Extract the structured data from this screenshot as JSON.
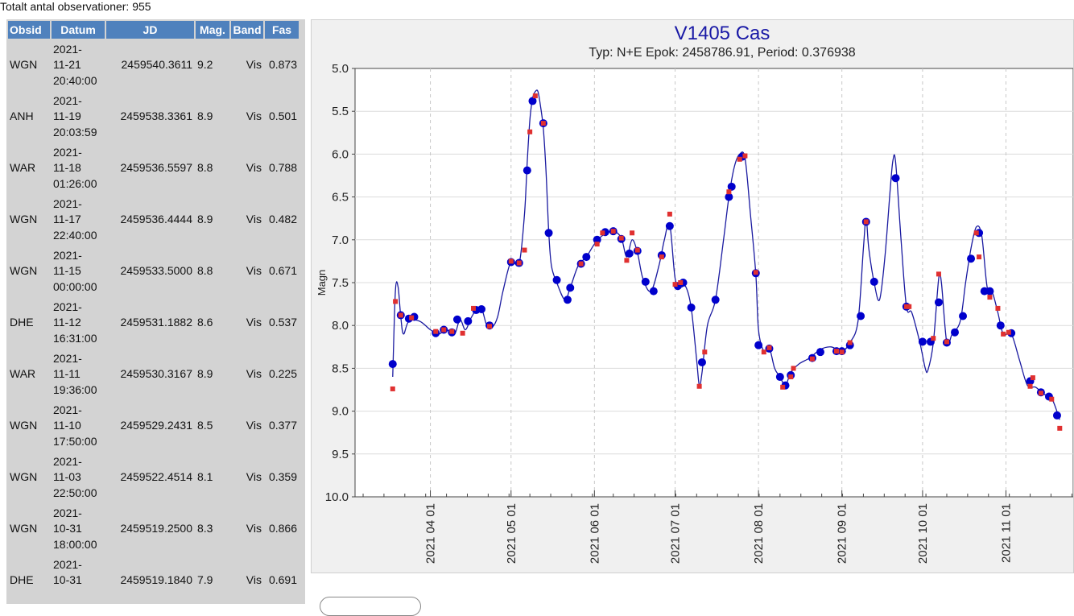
{
  "header": {
    "total_label": "Totalt antal observationer: 955"
  },
  "table": {
    "columns": [
      "Obsid",
      "Datum",
      "JD",
      "Mag.",
      "Band",
      "Fas"
    ],
    "rows": [
      {
        "obsid": "WGN",
        "datum": [
          "2021-",
          "11-21",
          "20:40:00"
        ],
        "jd": "2459540.3611",
        "mag": "9.2",
        "band": "Vis",
        "fas": "0.873"
      },
      {
        "obsid": "ANH",
        "datum": [
          "2021-",
          "11-19",
          "20:03:59"
        ],
        "jd": "2459538.3361",
        "mag": "8.9",
        "band": "Vis",
        "fas": "0.501"
      },
      {
        "obsid": "WAR",
        "datum": [
          "2021-",
          "11-18",
          "01:26:00"
        ],
        "jd": "2459536.5597",
        "mag": "8.8",
        "band": "Vis",
        "fas": "0.788"
      },
      {
        "obsid": "WGN",
        "datum": [
          "2021-",
          "11-17",
          "22:40:00"
        ],
        "jd": "2459536.4444",
        "mag": "8.9",
        "band": "Vis",
        "fas": "0.482"
      },
      {
        "obsid": "WGN",
        "datum": [
          "2021-",
          "11-15",
          "00:00:00"
        ],
        "jd": "2459533.5000",
        "mag": "8.8",
        "band": "Vis",
        "fas": "0.671"
      },
      {
        "obsid": "DHE",
        "datum": [
          "2021-",
          "11-12",
          "16:31:00"
        ],
        "jd": "2459531.1882",
        "mag": "8.6",
        "band": "Vis",
        "fas": "0.537"
      },
      {
        "obsid": "WAR",
        "datum": [
          "2021-",
          "11-11",
          "19:36:00"
        ],
        "jd": "2459530.3167",
        "mag": "8.9",
        "band": "Vis",
        "fas": "0.225"
      },
      {
        "obsid": "WGN",
        "datum": [
          "2021-",
          "11-10",
          "17:50:00"
        ],
        "jd": "2459529.2431",
        "mag": "8.5",
        "band": "Vis",
        "fas": "0.377"
      },
      {
        "obsid": "WGN",
        "datum": [
          "2021-",
          "11-03",
          "22:50:00"
        ],
        "jd": "2459522.4514",
        "mag": "8.1",
        "band": "Vis",
        "fas": "0.359"
      },
      {
        "obsid": "WGN",
        "datum": [
          "2021-",
          "10-31",
          "18:00:00"
        ],
        "jd": "2459519.2500",
        "mag": "8.3",
        "band": "Vis",
        "fas": "0.866"
      },
      {
        "obsid": "DHE",
        "datum": [
          "2021-",
          "10-31",
          ""
        ],
        "jd": "2459519.1840",
        "mag": "7.9",
        "band": "Vis",
        "fas": "0.691"
      }
    ]
  },
  "chart_data": {
    "type": "scatter",
    "title": "V1405 Cas",
    "subtitle": "Typ: N+E Epok: 2458786.91, Period: 0.376938",
    "ylabel": "Magn",
    "xlabel": "",
    "ylim": [
      10.0,
      5.0
    ],
    "y_inverted": true,
    "yticks": [
      "5.0",
      "5.5",
      "6.0",
      "6.5",
      "7.0",
      "7.5",
      "8.0",
      "8.5",
      "9.0",
      "9.5",
      "10.0"
    ],
    "xlim": [
      "2021-03-04",
      "2021-11-26"
    ],
    "xticks": [
      "2021 04 01",
      "2021 05 01",
      "2021 06 01",
      "2021 07 01",
      "2021 08 01",
      "2021 09 01",
      "2021 10 01",
      "2021 11 01"
    ],
    "grid": true,
    "colors": {
      "blue_points": "#0000cc",
      "red_points": "#e03030",
      "line": "#1a1aa0",
      "title": "#1a1aa6"
    },
    "blue_points": [
      [
        "2021-03-18",
        8.45
      ],
      [
        "2021-03-21",
        7.88
      ],
      [
        "2021-03-24",
        7.92
      ],
      [
        "2021-03-26",
        7.9
      ],
      [
        "2021-04-03",
        8.09
      ],
      [
        "2021-04-06",
        8.05
      ],
      [
        "2021-04-09",
        8.08
      ],
      [
        "2021-04-11",
        7.93
      ],
      [
        "2021-04-15",
        7.95
      ],
      [
        "2021-04-18",
        7.82
      ],
      [
        "2021-04-20",
        7.81
      ],
      [
        "2021-04-23",
        8.0
      ],
      [
        "2021-05-01",
        7.26
      ],
      [
        "2021-05-04",
        7.27
      ],
      [
        "2021-05-07",
        6.19
      ],
      [
        "2021-05-09",
        5.38
      ],
      [
        "2021-05-13",
        5.64
      ],
      [
        "2021-05-15",
        6.92
      ],
      [
        "2021-05-18",
        7.47
      ],
      [
        "2021-05-22",
        7.7
      ],
      [
        "2021-05-23",
        7.56
      ],
      [
        "2021-05-27",
        7.28
      ],
      [
        "2021-05-29",
        7.2
      ],
      [
        "2021-06-02",
        7.0
      ],
      [
        "2021-06-05",
        6.91
      ],
      [
        "2021-06-08",
        6.9
      ],
      [
        "2021-06-11",
        6.99
      ],
      [
        "2021-06-14",
        7.16
      ],
      [
        "2021-06-17",
        7.13
      ],
      [
        "2021-06-20",
        7.49
      ],
      [
        "2021-06-23",
        7.6
      ],
      [
        "2021-06-26",
        7.18
      ],
      [
        "2021-06-29",
        6.84
      ],
      [
        "2021-07-02",
        7.54
      ],
      [
        "2021-07-04",
        7.5
      ],
      [
        "2021-07-07",
        7.79
      ],
      [
        "2021-07-11",
        8.43
      ],
      [
        "2021-07-16",
        7.7
      ],
      [
        "2021-07-21",
        6.5
      ],
      [
        "2021-07-22",
        6.38
      ],
      [
        "2021-07-26",
        6.03
      ],
      [
        "2021-07-31",
        7.39
      ],
      [
        "2021-08-01",
        8.23
      ],
      [
        "2021-08-05",
        8.27
      ],
      [
        "2021-08-09",
        8.6
      ],
      [
        "2021-08-11",
        8.7
      ],
      [
        "2021-08-13",
        8.58
      ],
      [
        "2021-08-21",
        8.38
      ],
      [
        "2021-08-24",
        8.31
      ],
      [
        "2021-08-30",
        8.3
      ],
      [
        "2021-09-01",
        8.3
      ],
      [
        "2021-09-04",
        8.23
      ],
      [
        "2021-09-08",
        7.89
      ],
      [
        "2021-09-10",
        6.79
      ],
      [
        "2021-09-13",
        7.49
      ],
      [
        "2021-09-21",
        6.28
      ],
      [
        "2021-09-25",
        7.78
      ],
      [
        "2021-10-01",
        8.19
      ],
      [
        "2021-10-04",
        8.19
      ],
      [
        "2021-10-07",
        7.73
      ],
      [
        "2021-10-10",
        8.2
      ],
      [
        "2021-10-13",
        8.08
      ],
      [
        "2021-10-16",
        7.89
      ],
      [
        "2021-10-19",
        7.22
      ],
      [
        "2021-10-22",
        6.92
      ],
      [
        "2021-10-24",
        7.6
      ],
      [
        "2021-10-26",
        7.6
      ],
      [
        "2021-10-30",
        8.0
      ],
      [
        "2021-11-03",
        8.09
      ],
      [
        "2021-11-10",
        8.65
      ],
      [
        "2021-11-14",
        8.78
      ],
      [
        "2021-11-17",
        8.83
      ],
      [
        "2021-11-20",
        9.05
      ]
    ],
    "red_points": [
      [
        "2021-03-18",
        8.74
      ],
      [
        "2021-03-19",
        7.72
      ],
      [
        "2021-03-21",
        7.88
      ],
      [
        "2021-03-25",
        7.91
      ],
      [
        "2021-04-03",
        8.07
      ],
      [
        "2021-04-06",
        8.05
      ],
      [
        "2021-04-09",
        8.07
      ],
      [
        "2021-04-13",
        8.09
      ],
      [
        "2021-04-17",
        7.8
      ],
      [
        "2021-04-23",
        8.01
      ],
      [
        "2021-05-01",
        7.25
      ],
      [
        "2021-05-04",
        7.27
      ],
      [
        "2021-05-06",
        7.12
      ],
      [
        "2021-05-08",
        5.74
      ],
      [
        "2021-05-10",
        5.32
      ],
      [
        "2021-05-13",
        5.64
      ],
      [
        "2021-05-27",
        7.28
      ],
      [
        "2021-06-02",
        7.05
      ],
      [
        "2021-06-04",
        6.92
      ],
      [
        "2021-06-08",
        6.9
      ],
      [
        "2021-06-11",
        6.98
      ],
      [
        "2021-06-13",
        7.24
      ],
      [
        "2021-06-15",
        6.92
      ],
      [
        "2021-06-17",
        7.12
      ],
      [
        "2021-06-26",
        7.2
      ],
      [
        "2021-06-29",
        6.7
      ],
      [
        "2021-07-01",
        7.52
      ],
      [
        "2021-07-03",
        7.5
      ],
      [
        "2021-07-10",
        8.71
      ],
      [
        "2021-07-12",
        8.31
      ],
      [
        "2021-07-21",
        6.44
      ],
      [
        "2021-07-25",
        6.06
      ],
      [
        "2021-07-27",
        6.02
      ],
      [
        "2021-07-31",
        7.38
      ],
      [
        "2021-08-03",
        8.31
      ],
      [
        "2021-08-05",
        8.26
      ],
      [
        "2021-08-10",
        8.72
      ],
      [
        "2021-08-13",
        8.6
      ],
      [
        "2021-08-14",
        8.5
      ],
      [
        "2021-08-21",
        8.39
      ],
      [
        "2021-08-30",
        8.3
      ],
      [
        "2021-09-01",
        8.31
      ],
      [
        "2021-09-04",
        8.2
      ],
      [
        "2021-09-10",
        6.79
      ],
      [
        "2021-09-25",
        7.78
      ],
      [
        "2021-09-26",
        7.78
      ],
      [
        "2021-10-05",
        8.15
      ],
      [
        "2021-10-07",
        7.4
      ],
      [
        "2021-10-10",
        8.19
      ],
      [
        "2021-10-21",
        6.92
      ],
      [
        "2021-10-22",
        7.2
      ],
      [
        "2021-10-26",
        7.67
      ],
      [
        "2021-10-29",
        7.8
      ],
      [
        "2021-10-31",
        8.1
      ],
      [
        "2021-11-02",
        8.08
      ],
      [
        "2021-11-10",
        8.71
      ],
      [
        "2021-11-11",
        8.61
      ],
      [
        "2021-11-14",
        8.79
      ],
      [
        "2021-11-18",
        8.86
      ],
      [
        "2021-11-21",
        9.2
      ]
    ],
    "fit_curve": [
      [
        "2021-03-18",
        8.6
      ],
      [
        "2021-03-19",
        7.6
      ],
      [
        "2021-03-20",
        7.55
      ],
      [
        "2021-03-21",
        7.9
      ],
      [
        "2021-03-22",
        8.1
      ],
      [
        "2021-03-24",
        7.95
      ],
      [
        "2021-03-28",
        7.95
      ],
      [
        "2021-04-01",
        8.05
      ],
      [
        "2021-04-04",
        8.1
      ],
      [
        "2021-04-07",
        8.05
      ],
      [
        "2021-04-10",
        8.1
      ],
      [
        "2021-04-12",
        7.93
      ],
      [
        "2021-04-14",
        8.05
      ],
      [
        "2021-04-16",
        7.92
      ],
      [
        "2021-04-18",
        7.82
      ],
      [
        "2021-04-20",
        7.8
      ],
      [
        "2021-04-22",
        8.0
      ],
      [
        "2021-04-24",
        8.02
      ],
      [
        "2021-04-26",
        7.9
      ],
      [
        "2021-04-28",
        7.6
      ],
      [
        "2021-05-01",
        7.25
      ],
      [
        "2021-05-04",
        7.28
      ],
      [
        "2021-05-06",
        6.7
      ],
      [
        "2021-05-07",
        6.1
      ],
      [
        "2021-05-08",
        5.6
      ],
      [
        "2021-05-09",
        5.35
      ],
      [
        "2021-05-10",
        5.27
      ],
      [
        "2021-05-11",
        5.27
      ],
      [
        "2021-05-12",
        5.45
      ],
      [
        "2021-05-13",
        5.7
      ],
      [
        "2021-05-14",
        6.2
      ],
      [
        "2021-05-15",
        6.9
      ],
      [
        "2021-05-16",
        7.3
      ],
      [
        "2021-05-18",
        7.5
      ],
      [
        "2021-05-21",
        7.7
      ],
      [
        "2021-05-23",
        7.56
      ],
      [
        "2021-05-26",
        7.3
      ],
      [
        "2021-05-29",
        7.2
      ],
      [
        "2021-06-01",
        7.05
      ],
      [
        "2021-06-04",
        6.95
      ],
      [
        "2021-06-08",
        6.9
      ],
      [
        "2021-06-11",
        6.98
      ],
      [
        "2021-06-13",
        7.2
      ],
      [
        "2021-06-15",
        7.0
      ],
      [
        "2021-06-17",
        7.15
      ],
      [
        "2021-06-19",
        7.45
      ],
      [
        "2021-06-22",
        7.6
      ],
      [
        "2021-06-25",
        7.3
      ],
      [
        "2021-06-27",
        7.0
      ],
      [
        "2021-06-29",
        6.82
      ],
      [
        "2021-07-01",
        7.45
      ],
      [
        "2021-07-03",
        7.55
      ],
      [
        "2021-07-05",
        7.55
      ],
      [
        "2021-07-07",
        7.8
      ],
      [
        "2021-07-09",
        8.4
      ],
      [
        "2021-07-10",
        8.7
      ],
      [
        "2021-07-11",
        8.55
      ],
      [
        "2021-07-13",
        8.0
      ],
      [
        "2021-07-16",
        7.7
      ],
      [
        "2021-07-19",
        7.0
      ],
      [
        "2021-07-21",
        6.5
      ],
      [
        "2021-07-23",
        6.15
      ],
      [
        "2021-07-25",
        6.0
      ],
      [
        "2021-07-27",
        6.05
      ],
      [
        "2021-07-29",
        6.7
      ],
      [
        "2021-07-31",
        7.4
      ],
      [
        "2021-08-01",
        8.05
      ],
      [
        "2021-08-03",
        8.3
      ],
      [
        "2021-08-05",
        8.26
      ],
      [
        "2021-08-07",
        8.5
      ],
      [
        "2021-08-09",
        8.6
      ],
      [
        "2021-08-11",
        8.7
      ],
      [
        "2021-08-13",
        8.55
      ],
      [
        "2021-08-16",
        8.45
      ],
      [
        "2021-08-20",
        8.38
      ],
      [
        "2021-08-24",
        8.28
      ],
      [
        "2021-08-28",
        8.25
      ],
      [
        "2021-09-01",
        8.3
      ],
      [
        "2021-09-04",
        8.2
      ],
      [
        "2021-09-07",
        7.95
      ],
      [
        "2021-09-09",
        7.1
      ],
      [
        "2021-09-10",
        6.75
      ],
      [
        "2021-09-11",
        7.1
      ],
      [
        "2021-09-13",
        7.5
      ],
      [
        "2021-09-15",
        7.7
      ],
      [
        "2021-09-17",
        7.2
      ],
      [
        "2021-09-19",
        6.4
      ],
      [
        "2021-09-20",
        6.07
      ],
      [
        "2021-09-21",
        6.1
      ],
      [
        "2021-09-23",
        7.0
      ],
      [
        "2021-09-25",
        7.78
      ],
      [
        "2021-09-27",
        7.85
      ],
      [
        "2021-09-30",
        8.2
      ],
      [
        "2021-10-02",
        8.5
      ],
      [
        "2021-10-03",
        8.52
      ],
      [
        "2021-10-05",
        8.2
      ],
      [
        "2021-10-07",
        7.45
      ],
      [
        "2021-10-08",
        7.5
      ],
      [
        "2021-10-10",
        8.2
      ],
      [
        "2021-10-12",
        8.1
      ],
      [
        "2021-10-15",
        7.95
      ],
      [
        "2021-10-17",
        7.5
      ],
      [
        "2021-10-19",
        7.1
      ],
      [
        "2021-10-21",
        6.85
      ],
      [
        "2021-10-23",
        6.95
      ],
      [
        "2021-10-25",
        7.55
      ],
      [
        "2021-10-27",
        7.62
      ],
      [
        "2021-10-29",
        7.85
      ],
      [
        "2021-10-31",
        8.1
      ],
      [
        "2021-11-03",
        8.1
      ],
      [
        "2021-11-06",
        8.4
      ],
      [
        "2021-11-09",
        8.7
      ],
      [
        "2021-11-12",
        8.72
      ],
      [
        "2021-11-15",
        8.8
      ],
      [
        "2021-11-18",
        8.85
      ],
      [
        "2021-11-21",
        9.1
      ]
    ]
  }
}
